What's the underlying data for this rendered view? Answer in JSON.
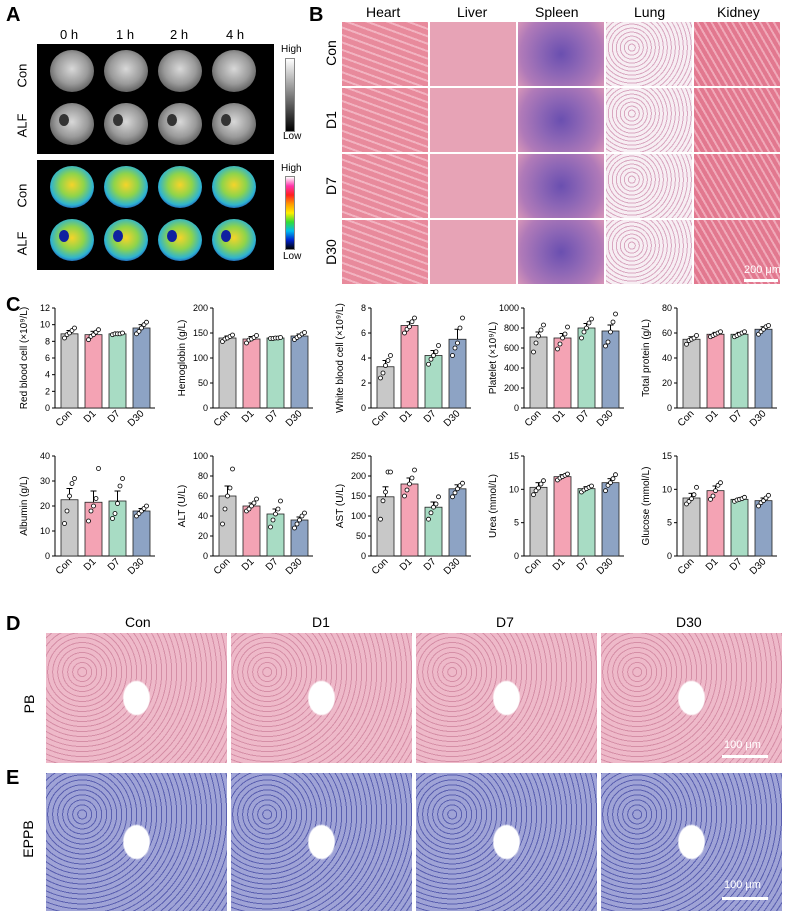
{
  "panels": {
    "a": "A",
    "b": "B",
    "c": "C",
    "d": "D",
    "e": "E"
  },
  "panel_a": {
    "timepoints": [
      "0 h",
      "1 h",
      "2 h",
      "4 h"
    ],
    "rows": [
      "Con",
      "ALF",
      "Con",
      "ALF"
    ],
    "gray_scale": {
      "high": "High",
      "low": "Low"
    },
    "color_scale": {
      "high": "High",
      "low": "Low"
    }
  },
  "panel_b": {
    "organs": [
      "Heart",
      "Liver",
      "Spleen",
      "Lung",
      "Kidney"
    ],
    "groups": [
      "Con",
      "D1",
      "D7",
      "D30"
    ],
    "scale_bar": "200 μm",
    "colors": {
      "heart": "#e88a9c",
      "liver": "#e7a3b6",
      "spleen": "#b07ab8",
      "lung": "#f3dce6",
      "kidney": "#e2788f"
    }
  },
  "panel_d": {
    "columns": [
      "Con",
      "D1",
      "D7",
      "D30"
    ],
    "row_label": "PB",
    "scale_bar": "100 μm",
    "tissue_color": "#eeb9c9"
  },
  "panel_e": {
    "row_label": "EPPB",
    "scale_bar": "100 μm",
    "tissue_color": "#9fa3d6"
  },
  "chart_data": [
    {
      "type": "bar",
      "ylabel": "Red blood cell (×10⁹/L)",
      "ylim": [
        0,
        12
      ],
      "yticks": [
        0,
        2,
        4,
        6,
        8,
        10,
        12
      ],
      "categories": [
        "Con",
        "D1",
        "D7",
        "D30"
      ],
      "values": [
        8.9,
        8.8,
        8.9,
        9.6
      ],
      "errors": [
        0.4,
        0.4,
        0.15,
        0.4
      ],
      "points": [
        [
          8.4,
          8.8,
          9.0,
          9.3,
          9.6
        ],
        [
          8.2,
          8.6,
          8.8,
          9.1,
          9.4
        ],
        [
          8.8,
          8.9,
          8.9,
          8.9,
          9.0
        ],
        [
          8.9,
          9.2,
          9.6,
          10.0,
          10.3
        ]
      ]
    },
    {
      "type": "bar",
      "ylabel": "Hemoglobin (g/L)",
      "ylim": [
        0,
        200
      ],
      "yticks": [
        0,
        50,
        100,
        150,
        200
      ],
      "categories": [
        "Con",
        "D1",
        "D7",
        "D30"
      ],
      "values": [
        140,
        138,
        140,
        144
      ],
      "errors": [
        4,
        5,
        1,
        4
      ],
      "points": [
        [
          133,
          138,
          140,
          143,
          146
        ],
        [
          130,
          136,
          138,
          141,
          145
        ],
        [
          139,
          139,
          140,
          140,
          141
        ],
        [
          137,
          141,
          144,
          148,
          151
        ]
      ]
    },
    {
      "type": "bar",
      "ylabel": "White blood cell (×10⁹/L)",
      "ylim": [
        0,
        8
      ],
      "yticks": [
        0,
        2,
        4,
        6,
        8
      ],
      "categories": [
        "Con",
        "D1",
        "D7",
        "D30"
      ],
      "values": [
        3.3,
        6.6,
        4.2,
        5.5
      ],
      "errors": [
        0.5,
        0.3,
        0.4,
        0.8
      ],
      "points": [
        [
          2.4,
          2.8,
          3.4,
          3.8,
          4.2
        ],
        [
          6.0,
          6.3,
          6.5,
          6.9,
          7.2
        ],
        [
          3.5,
          3.9,
          4.2,
          4.5,
          5.0
        ],
        [
          4.2,
          4.8,
          5.2,
          6.4,
          7.2
        ]
      ]
    },
    {
      "type": "bar",
      "ylabel": "Platelet (×10⁹/L)",
      "ylim": [
        0,
        1000
      ],
      "yticks": [
        0,
        200,
        400,
        600,
        800,
        1000
      ],
      "categories": [
        "Con",
        "D1",
        "D7",
        "D30"
      ],
      "values": [
        710,
        700,
        800,
        770
      ],
      "errors": [
        50,
        45,
        45,
        60
      ],
      "points": [
        [
          560,
          650,
          720,
          780,
          830
        ],
        [
          590,
          640,
          700,
          740,
          810
        ],
        [
          700,
          760,
          800,
          850,
          890
        ],
        [
          620,
          660,
          760,
          860,
          940
        ]
      ]
    },
    {
      "type": "bar",
      "ylabel": "Total protein (g/L)",
      "ylim": [
        0,
        80
      ],
      "yticks": [
        0,
        20,
        40,
        60,
        80
      ],
      "categories": [
        "Con",
        "D1",
        "D7",
        "D30"
      ],
      "values": [
        55,
        59,
        59,
        63
      ],
      "errors": [
        2,
        1.5,
        1.5,
        2
      ],
      "points": [
        [
          51,
          54,
          55,
          56,
          58
        ],
        [
          57,
          58,
          59,
          60,
          61
        ],
        [
          57,
          58,
          59,
          60,
          61
        ],
        [
          59,
          61,
          63,
          65,
          66
        ]
      ]
    },
    {
      "type": "bar",
      "ylabel": "Albumin (g/L)",
      "ylim": [
        0,
        40
      ],
      "yticks": [
        0,
        10,
        20,
        30,
        40
      ],
      "categories": [
        "Con",
        "D1",
        "D7",
        "D30"
      ],
      "values": [
        22.5,
        21.5,
        22,
        18
      ],
      "errors": [
        4.5,
        4.5,
        4,
        1
      ],
      "points": [
        [
          13,
          18,
          24,
          29,
          31
        ],
        [
          14,
          18,
          20,
          23,
          35
        ],
        [
          15,
          17,
          21,
          28,
          31
        ],
        [
          16,
          17,
          18,
          19,
          20
        ]
      ]
    },
    {
      "type": "bar",
      "ylabel": "ALT (U/L)",
      "ylim": [
        0,
        100
      ],
      "yticks": [
        0,
        20,
        40,
        60,
        80,
        100
      ],
      "categories": [
        "Con",
        "D1",
        "D7",
        "D30"
      ],
      "values": [
        60,
        50,
        42,
        36
      ],
      "errors": [
        10,
        3,
        5,
        3
      ],
      "points": [
        [
          32,
          47,
          60,
          68,
          87
        ],
        [
          45,
          47,
          50,
          53,
          57
        ],
        [
          29,
          36,
          42,
          47,
          55
        ],
        [
          28,
          32,
          36,
          40,
          43
        ]
      ]
    },
    {
      "type": "bar",
      "ylabel": "AST (U/L)",
      "ylim": [
        0,
        250
      ],
      "yticks": [
        0,
        50,
        100,
        150,
        200,
        250
      ],
      "categories": [
        "Con",
        "D1",
        "D7",
        "D30"
      ],
      "values": [
        148,
        180,
        122,
        168
      ],
      "errors": [
        25,
        15,
        13,
        10
      ],
      "points": [
        [
          92,
          138,
          160,
          210,
          210
        ],
        [
          150,
          165,
          180,
          195,
          215
        ],
        [
          92,
          108,
          122,
          130,
          148
        ],
        [
          148,
          158,
          168,
          176,
          182
        ]
      ]
    },
    {
      "type": "bar",
      "ylabel": "Urea (mmol/L)",
      "ylim": [
        0,
        15
      ],
      "yticks": [
        0,
        5,
        10,
        15
      ],
      "categories": [
        "Con",
        "D1",
        "D7",
        "D30"
      ],
      "values": [
        10.3,
        11.9,
        10.1,
        11.0
      ],
      "errors": [
        0.7,
        0.3,
        0.3,
        0.6
      ],
      "points": [
        [
          9.2,
          9.8,
          10.2,
          10.8,
          11.3
        ],
        [
          11.4,
          11.7,
          11.9,
          12.1,
          12.3
        ],
        [
          9.6,
          9.9,
          10.1,
          10.3,
          10.5
        ],
        [
          9.8,
          10.6,
          11.0,
          11.6,
          12.2
        ]
      ]
    },
    {
      "type": "bar",
      "ylabel": "Glucose (mmol/L)",
      "ylim": [
        0,
        15
      ],
      "yticks": [
        0,
        5,
        10,
        15
      ],
      "categories": [
        "Con",
        "D1",
        "D7",
        "D30"
      ],
      "values": [
        8.7,
        9.8,
        8.5,
        8.3
      ],
      "errors": [
        0.7,
        0.7,
        0.2,
        0.4
      ],
      "points": [
        [
          7.8,
          8.2,
          8.6,
          9.2,
          10.3
        ],
        [
          8.5,
          9.0,
          9.8,
          10.6,
          11.0
        ],
        [
          8.2,
          8.4,
          8.5,
          8.6,
          8.8
        ],
        [
          7.5,
          8.0,
          8.3,
          8.7,
          9.1
        ]
      ]
    }
  ],
  "bar_colors": [
    "#c8c8c8",
    "#f4a3b4",
    "#a8dcc4",
    "#8da3c4"
  ]
}
